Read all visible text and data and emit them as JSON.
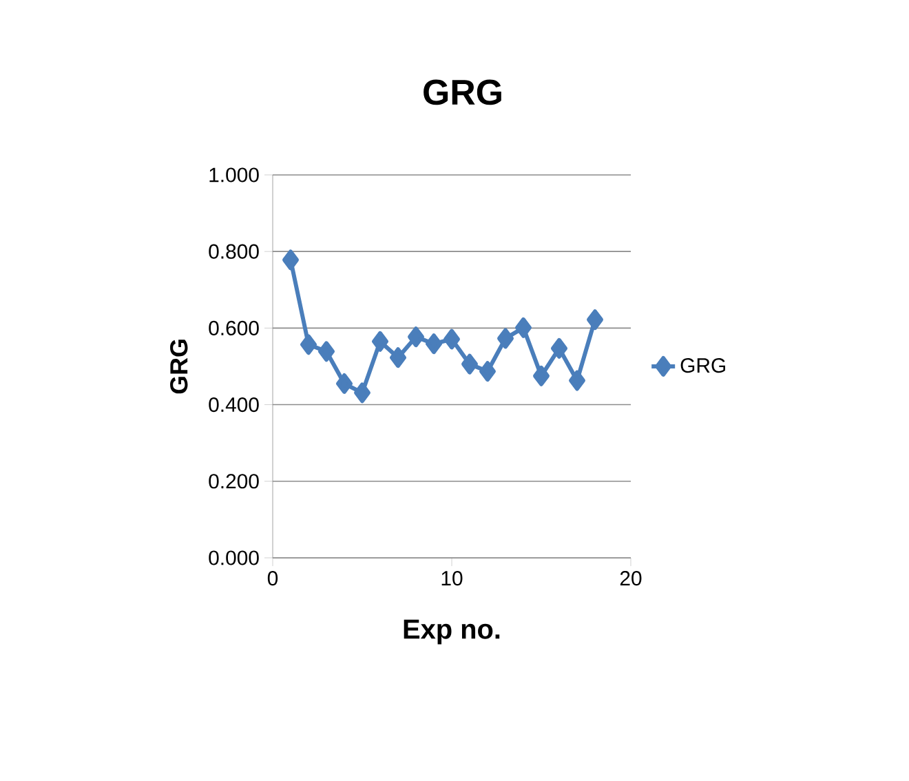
{
  "chart_data": {
    "type": "line",
    "title": "GRG",
    "xlabel": "Exp no.",
    "ylabel": "GRG",
    "x": [
      1,
      2,
      3,
      4,
      5,
      6,
      7,
      8,
      9,
      10,
      11,
      12,
      13,
      14,
      15,
      16,
      17,
      18
    ],
    "series": [
      {
        "name": "GRG",
        "color": "#4a7ebb",
        "values": [
          0.778,
          0.557,
          0.539,
          0.455,
          0.431,
          0.565,
          0.523,
          0.577,
          0.559,
          0.571,
          0.506,
          0.487,
          0.573,
          0.601,
          0.475,
          0.547,
          0.463,
          0.622
        ]
      }
    ],
    "xlim": [
      0,
      20
    ],
    "xticks": [
      0,
      10,
      20
    ],
    "ylim": [
      0,
      1
    ],
    "yticks": [
      {
        "value": 0,
        "label": "0.000"
      },
      {
        "value": 0.2,
        "label": "0.200"
      },
      {
        "value": 0.4,
        "label": "0.400"
      },
      {
        "value": 0.6,
        "label": "0.600"
      },
      {
        "value": 0.8,
        "label": "0.800"
      },
      {
        "value": 1,
        "label": "1.000"
      }
    ],
    "grid": "y",
    "legend": "right",
    "marker": "diamond",
    "line_style": "solid"
  }
}
